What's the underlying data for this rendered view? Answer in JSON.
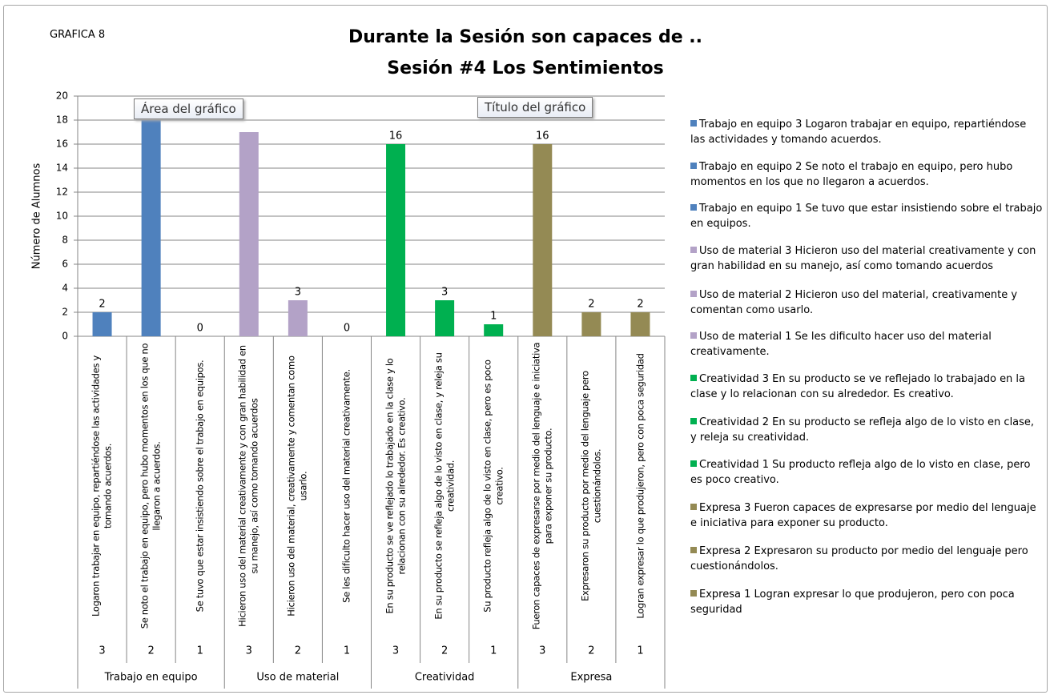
{
  "chart_data": {
    "type": "bar",
    "label": "GRAFICA 8",
    "title": "Durante la Sesión son capaces de ..",
    "subtitle": "Sesión #4 Los Sentimientos",
    "y_label": "Número de Alumnos",
    "annotations": [
      "Área del gráfico",
      "Título del gráfico"
    ],
    "categories": [
      "Logaron trabajar en equipo, repartiéndose las actividades y tomando acuerdos.",
      "Se noto el trabajo en equipo, pero hubo momentos en los que no llegaron a acuerdos.",
      "Se tuvo que estar insistiendo sobre el trabajo en equipos.",
      "Hicieron uso del material creativamente y con gran habilidad en su manejo, así como tomando acuerdos",
      "Hicieron uso del material, creativamente y comentan como usarlo.",
      "Se les dificulto hacer uso del material creativamente.",
      "En su producto se ve reflejado lo trabajado en la clase y lo relacionan con su alrededor. Es creativo.",
      "En su producto se refleja algo de lo visto en clase, y releja su creatividad.",
      "Su producto refleja algo de lo visto en clase, pero es poco creativo.",
      "Fueron capaces de expresarse por medio del lenguaje e iniciativa para exponer su producto.",
      "Expresaron su producto por medio del lenguaje pero cuestionándolos.",
      "Logran expresar lo que produjeron, pero con poca seguridad"
    ],
    "levels": [
      "3",
      "2",
      "1",
      "3",
      "2",
      "1",
      "3",
      "2",
      "1",
      "3",
      "2",
      "1"
    ],
    "groups": [
      "Trabajo en equipo",
      "Uso de material",
      "Creatividad",
      "Expresa"
    ],
    "values": [
      2,
      18,
      0,
      17,
      3,
      0,
      16,
      3,
      1,
      16,
      2,
      2
    ],
    "value_labels": [
      "2",
      null,
      "0",
      null,
      "3",
      "0",
      "16",
      "3",
      "1",
      "16",
      "2",
      "2"
    ],
    "colors": [
      "#4f81bd",
      "#4f81bd",
      "#4f81bd",
      "#b3a2c7",
      "#b3a2c7",
      "#b3a2c7",
      "#00b050",
      "#00b050",
      "#00b050",
      "#948a54",
      "#948a54",
      "#948a54"
    ],
    "legend": [
      "Trabajo en equipo 3 Logaron trabajar en equipo, repartiéndose las actividades y tomando acuerdos.",
      "Trabajo en equipo 2 Se noto el trabajo en equipo, pero hubo momentos en los que no llegaron a acuerdos.",
      "Trabajo en equipo 1 Se tuvo que estar insistiendo sobre el trabajo en equipos.",
      "Uso de material 3 Hicieron uso del material creativamente y con gran habilidad en su manejo, así como tomando acuerdos",
      "Uso de material 2 Hicieron uso del material, creativamente y comentan como usarlo.",
      "Uso de material 1 Se les dificulto hacer uso del material creativamente.",
      "Creatividad 3 En su producto se ve reflejado lo trabajado en la clase y lo relacionan con su alrededor. Es creativo.",
      "Creatividad 2 En su producto se refleja algo de lo visto en clase, y releja su creatividad.",
      "Creatividad 1 Su producto refleja algo de lo visto en clase, pero es poco creativo.",
      "Expresa 3 Fueron capaces de expresarse por medio del lenguaje e iniciativa para exponer su producto.",
      "Expresa 2 Expresaron su producto por medio del lenguaje pero cuestionándolos.",
      "Expresa 1 Logran expresar lo que produjeron, pero con poca seguridad"
    ],
    "legend_position": "right",
    "ylim": [
      0,
      20
    ],
    "yticks": [
      0,
      2,
      4,
      6,
      8,
      10,
      12,
      14,
      16,
      18,
      20
    ],
    "grid": true
  }
}
